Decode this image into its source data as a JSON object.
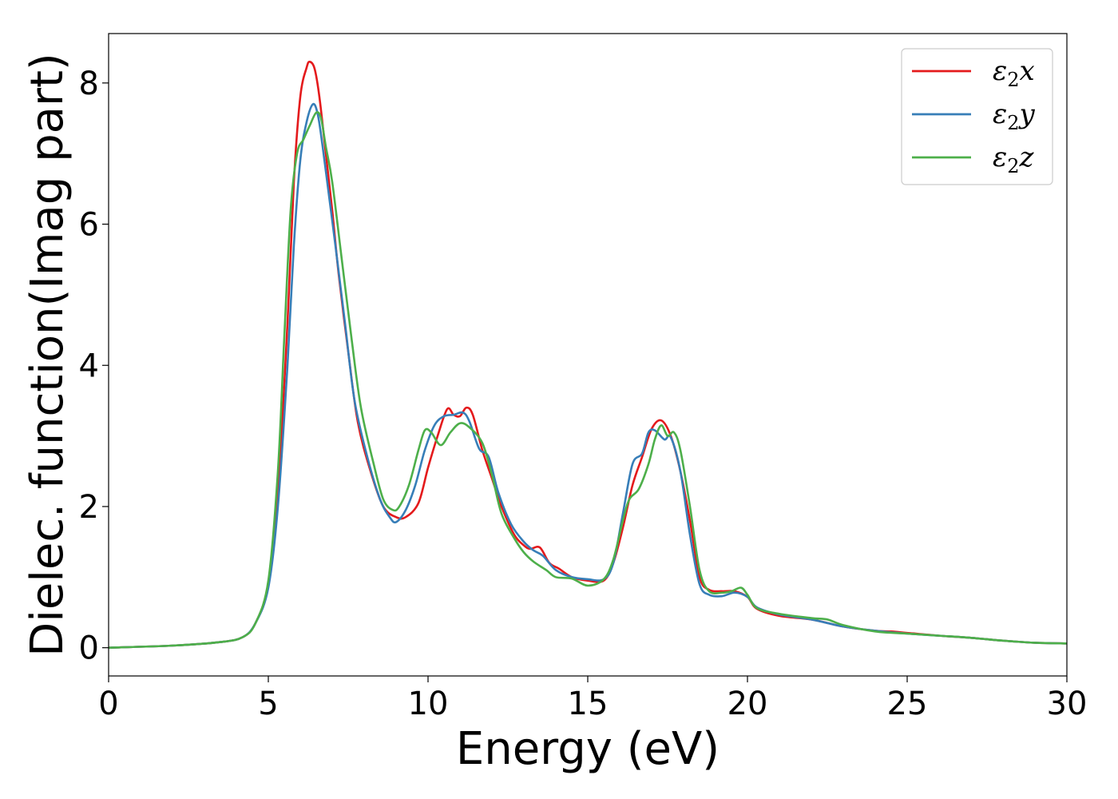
{
  "chart_data": {
    "type": "line",
    "xlabel": "Energy (eV)",
    "ylabel": "Dielec. function(Imag part)",
    "xlim": [
      0,
      30
    ],
    "ylim": [
      -0.4,
      8.7
    ],
    "xticks": [
      0,
      5,
      10,
      15,
      20,
      25,
      30
    ],
    "yticks": [
      0,
      2,
      4,
      6,
      8
    ],
    "grid": false,
    "legend_position": "top-right",
    "series": [
      {
        "name": "ε₂x",
        "legend": {
          "base": "ε",
          "sub": "2",
          "tail": "x"
        },
        "color": "#e41a1c",
        "points": [
          [
            0,
            0
          ],
          [
            2,
            0.03
          ],
          [
            3.5,
            0.08
          ],
          [
            4.2,
            0.15
          ],
          [
            4.6,
            0.35
          ],
          [
            5,
            0.9
          ],
          [
            5.3,
            2.2
          ],
          [
            5.6,
            4.6
          ],
          [
            5.8,
            6.6
          ],
          [
            6.0,
            7.8
          ],
          [
            6.2,
            8.22
          ],
          [
            6.3,
            8.3
          ],
          [
            6.45,
            8.2
          ],
          [
            6.6,
            7.8
          ],
          [
            6.8,
            7.0
          ],
          [
            7.0,
            6.2
          ],
          [
            7.2,
            5.3
          ],
          [
            7.5,
            4.2
          ],
          [
            7.8,
            3.2
          ],
          [
            8.2,
            2.5
          ],
          [
            8.6,
            2.0
          ],
          [
            9.0,
            1.85
          ],
          [
            9.3,
            1.85
          ],
          [
            9.7,
            2.05
          ],
          [
            10.0,
            2.55
          ],
          [
            10.3,
            3.0
          ],
          [
            10.6,
            3.38
          ],
          [
            10.8,
            3.3
          ],
          [
            11.0,
            3.28
          ],
          [
            11.2,
            3.4
          ],
          [
            11.4,
            3.3
          ],
          [
            11.7,
            2.8
          ],
          [
            12.0,
            2.4
          ],
          [
            12.3,
            2.0
          ],
          [
            12.7,
            1.6
          ],
          [
            13.0,
            1.45
          ],
          [
            13.2,
            1.4
          ],
          [
            13.5,
            1.42
          ],
          [
            13.8,
            1.2
          ],
          [
            14.1,
            1.12
          ],
          [
            14.5,
            1.0
          ],
          [
            15.0,
            0.95
          ],
          [
            15.5,
            0.95
          ],
          [
            15.8,
            1.2
          ],
          [
            16.1,
            1.7
          ],
          [
            16.4,
            2.3
          ],
          [
            16.7,
            2.7
          ],
          [
            17.0,
            3.1
          ],
          [
            17.3,
            3.22
          ],
          [
            17.6,
            3.0
          ],
          [
            17.9,
            2.5
          ],
          [
            18.2,
            1.8
          ],
          [
            18.5,
            1.0
          ],
          [
            18.8,
            0.82
          ],
          [
            19.2,
            0.8
          ],
          [
            19.6,
            0.8
          ],
          [
            20.0,
            0.72
          ],
          [
            20.3,
            0.55
          ],
          [
            21,
            0.45
          ],
          [
            22,
            0.4
          ],
          [
            23,
            0.3
          ],
          [
            24,
            0.24
          ],
          [
            24.5,
            0.23
          ],
          [
            25,
            0.21
          ],
          [
            26,
            0.17
          ],
          [
            27,
            0.14
          ],
          [
            28,
            0.1
          ],
          [
            29,
            0.07
          ],
          [
            30,
            0.06
          ]
        ]
      },
      {
        "name": "ε₂y",
        "legend": {
          "base": "ε",
          "sub": "2",
          "tail": "y"
        },
        "color": "#377eb8",
        "points": [
          [
            0,
            0
          ],
          [
            2,
            0.03
          ],
          [
            3.5,
            0.08
          ],
          [
            4.2,
            0.15
          ],
          [
            4.6,
            0.35
          ],
          [
            5,
            0.85
          ],
          [
            5.3,
            2.0
          ],
          [
            5.6,
            4.0
          ],
          [
            5.8,
            5.7
          ],
          [
            6.0,
            6.9
          ],
          [
            6.2,
            7.45
          ],
          [
            6.4,
            7.7
          ],
          [
            6.55,
            7.55
          ],
          [
            6.7,
            7.1
          ],
          [
            6.9,
            6.4
          ],
          [
            7.1,
            5.7
          ],
          [
            7.4,
            4.6
          ],
          [
            7.7,
            3.5
          ],
          [
            8.1,
            2.7
          ],
          [
            8.5,
            2.1
          ],
          [
            8.8,
            1.85
          ],
          [
            9.0,
            1.78
          ],
          [
            9.3,
            1.95
          ],
          [
            9.6,
            2.3
          ],
          [
            9.9,
            2.8
          ],
          [
            10.2,
            3.15
          ],
          [
            10.5,
            3.28
          ],
          [
            10.8,
            3.3
          ],
          [
            11.1,
            3.33
          ],
          [
            11.3,
            3.2
          ],
          [
            11.6,
            2.82
          ],
          [
            11.9,
            2.7
          ],
          [
            12.2,
            2.2
          ],
          [
            12.6,
            1.75
          ],
          [
            13.0,
            1.5
          ],
          [
            13.3,
            1.38
          ],
          [
            13.6,
            1.3
          ],
          [
            14.0,
            1.1
          ],
          [
            14.5,
            1.0
          ],
          [
            15.0,
            0.97
          ],
          [
            15.5,
            0.97
          ],
          [
            15.8,
            1.2
          ],
          [
            16.1,
            1.9
          ],
          [
            16.4,
            2.6
          ],
          [
            16.7,
            2.75
          ],
          [
            16.9,
            3.05
          ],
          [
            17.1,
            3.08
          ],
          [
            17.4,
            2.95
          ],
          [
            17.6,
            2.98
          ],
          [
            17.9,
            2.5
          ],
          [
            18.2,
            1.6
          ],
          [
            18.5,
            0.9
          ],
          [
            18.8,
            0.75
          ],
          [
            19.2,
            0.73
          ],
          [
            19.6,
            0.78
          ],
          [
            20.0,
            0.72
          ],
          [
            20.3,
            0.57
          ],
          [
            21,
            0.47
          ],
          [
            22,
            0.4
          ],
          [
            23,
            0.3
          ],
          [
            24,
            0.24
          ],
          [
            25,
            0.2
          ],
          [
            26,
            0.17
          ],
          [
            27,
            0.14
          ],
          [
            28,
            0.1
          ],
          [
            29,
            0.07
          ],
          [
            30,
            0.06
          ]
        ]
      },
      {
        "name": "ε₂z",
        "legend": {
          "base": "ε",
          "sub": "2",
          "tail": "z"
        },
        "color": "#4daf4a",
        "points": [
          [
            0,
            0
          ],
          [
            2,
            0.03
          ],
          [
            3.5,
            0.08
          ],
          [
            4.2,
            0.15
          ],
          [
            4.6,
            0.35
          ],
          [
            5,
            0.95
          ],
          [
            5.3,
            2.5
          ],
          [
            5.5,
            4.4
          ],
          [
            5.7,
            6.2
          ],
          [
            5.9,
            7.0
          ],
          [
            6.1,
            7.2
          ],
          [
            6.3,
            7.4
          ],
          [
            6.5,
            7.58
          ],
          [
            6.65,
            7.5
          ],
          [
            6.8,
            7.1
          ],
          [
            7.0,
            6.6
          ],
          [
            7.3,
            5.5
          ],
          [
            7.6,
            4.4
          ],
          [
            7.9,
            3.4
          ],
          [
            8.3,
            2.6
          ],
          [
            8.6,
            2.1
          ],
          [
            8.9,
            1.95
          ],
          [
            9.1,
            2.0
          ],
          [
            9.4,
            2.3
          ],
          [
            9.7,
            2.8
          ],
          [
            9.9,
            3.08
          ],
          [
            10.1,
            3.05
          ],
          [
            10.4,
            2.87
          ],
          [
            10.7,
            3.05
          ],
          [
            11.0,
            3.18
          ],
          [
            11.3,
            3.12
          ],
          [
            11.7,
            2.9
          ],
          [
            12.0,
            2.45
          ],
          [
            12.3,
            1.9
          ],
          [
            12.7,
            1.55
          ],
          [
            13.0,
            1.35
          ],
          [
            13.3,
            1.22
          ],
          [
            13.7,
            1.1
          ],
          [
            14.0,
            1.0
          ],
          [
            14.5,
            0.98
          ],
          [
            15.0,
            0.88
          ],
          [
            15.5,
            0.97
          ],
          [
            15.8,
            1.25
          ],
          [
            16.1,
            1.8
          ],
          [
            16.3,
            2.1
          ],
          [
            16.6,
            2.25
          ],
          [
            16.9,
            2.6
          ],
          [
            17.1,
            2.95
          ],
          [
            17.3,
            3.15
          ],
          [
            17.5,
            3.0
          ],
          [
            17.7,
            3.05
          ],
          [
            17.9,
            2.8
          ],
          [
            18.2,
            2.0
          ],
          [
            18.5,
            1.1
          ],
          [
            18.8,
            0.8
          ],
          [
            19.2,
            0.78
          ],
          [
            19.5,
            0.8
          ],
          [
            19.8,
            0.85
          ],
          [
            20.0,
            0.75
          ],
          [
            20.3,
            0.56
          ],
          [
            21,
            0.48
          ],
          [
            22,
            0.42
          ],
          [
            22.5,
            0.4
          ],
          [
            23,
            0.32
          ],
          [
            24,
            0.23
          ],
          [
            25,
            0.2
          ],
          [
            26,
            0.17
          ],
          [
            27,
            0.14
          ],
          [
            28,
            0.1
          ],
          [
            29,
            0.07
          ],
          [
            30,
            0.06
          ]
        ]
      }
    ]
  }
}
